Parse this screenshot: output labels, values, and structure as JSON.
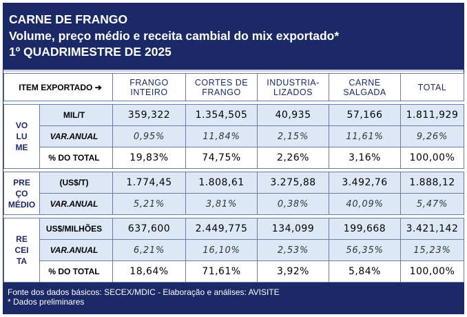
{
  "title": {
    "line1": "CARNE DE FRANGO",
    "line2": "Volume, preço médio e receita cambial do mix exportado*",
    "line3": "1º QUADRIMESTRE DE 2025"
  },
  "table": {
    "item_header": "ITEM EXPORTADO",
    "item_arrow": "➔",
    "columns": [
      {
        "line1": "FRANGO",
        "line2": "INTEIRO"
      },
      {
        "line1": "CORTES DE",
        "line2": "FRANGO"
      },
      {
        "line1": "INDUSTRIA-",
        "line2": "LIZADOS"
      },
      {
        "line1": "CARNE",
        "line2": "SALGADA"
      },
      {
        "line1": "TOTAL",
        "line2": ""
      }
    ],
    "groups": [
      {
        "label": [
          "VO",
          "LU",
          "ME"
        ],
        "rows": [
          {
            "label": "MIL/T",
            "values": [
              "359,322",
              "1.354,505",
              "40,935",
              "57,166",
              "1.811,929"
            ]
          },
          {
            "label": "VAR.ANUAL",
            "values": [
              "0,95%",
              "11,84%",
              "2,15%",
              "11,61%",
              "9,26%"
            ]
          },
          {
            "label": "% DO TOTAL",
            "values": [
              "19,83%",
              "74,75%",
              "2,26%",
              "3,16%",
              "100,00%"
            ]
          }
        ]
      },
      {
        "label": [
          "PRE",
          "ÇO",
          "MÉDIO"
        ],
        "rows": [
          {
            "label": "(US$/T)",
            "values": [
              "1.774,45",
              "1.808,61",
              "3.275,88",
              "3.492,76",
              "1.888,12"
            ]
          },
          {
            "label": "VAR.ANUAL",
            "values": [
              "5,21%",
              "3,81%",
              "0,38%",
              "40,09%",
              "5,47%"
            ]
          }
        ]
      },
      {
        "label": [
          "RE",
          "CEI",
          "TA"
        ],
        "rows": [
          {
            "label": "US$/MILHÕES",
            "values": [
              "637,600",
              "2.449,775",
              "134,099",
              "199,668",
              "3.421,142"
            ]
          },
          {
            "label": "VAR.ANUAL",
            "values": [
              "6,21%",
              "16,10%",
              "2,53%",
              "56,35%",
              "15,23%"
            ]
          },
          {
            "label": "% DO TOTAL",
            "values": [
              "18,64%",
              "71,61%",
              "3,92%",
              "5,84%",
              "100,00%"
            ]
          }
        ]
      }
    ]
  },
  "footer": {
    "source": "Fonte dos dados básicos: SECEX/MDIC - Elaboração e análises: AVISITE",
    "note": "* Dados preliminares"
  },
  "colors": {
    "header_bg": "#1b2a66",
    "row_shade": "#dde7f6",
    "grid": "#6a7aa6"
  }
}
